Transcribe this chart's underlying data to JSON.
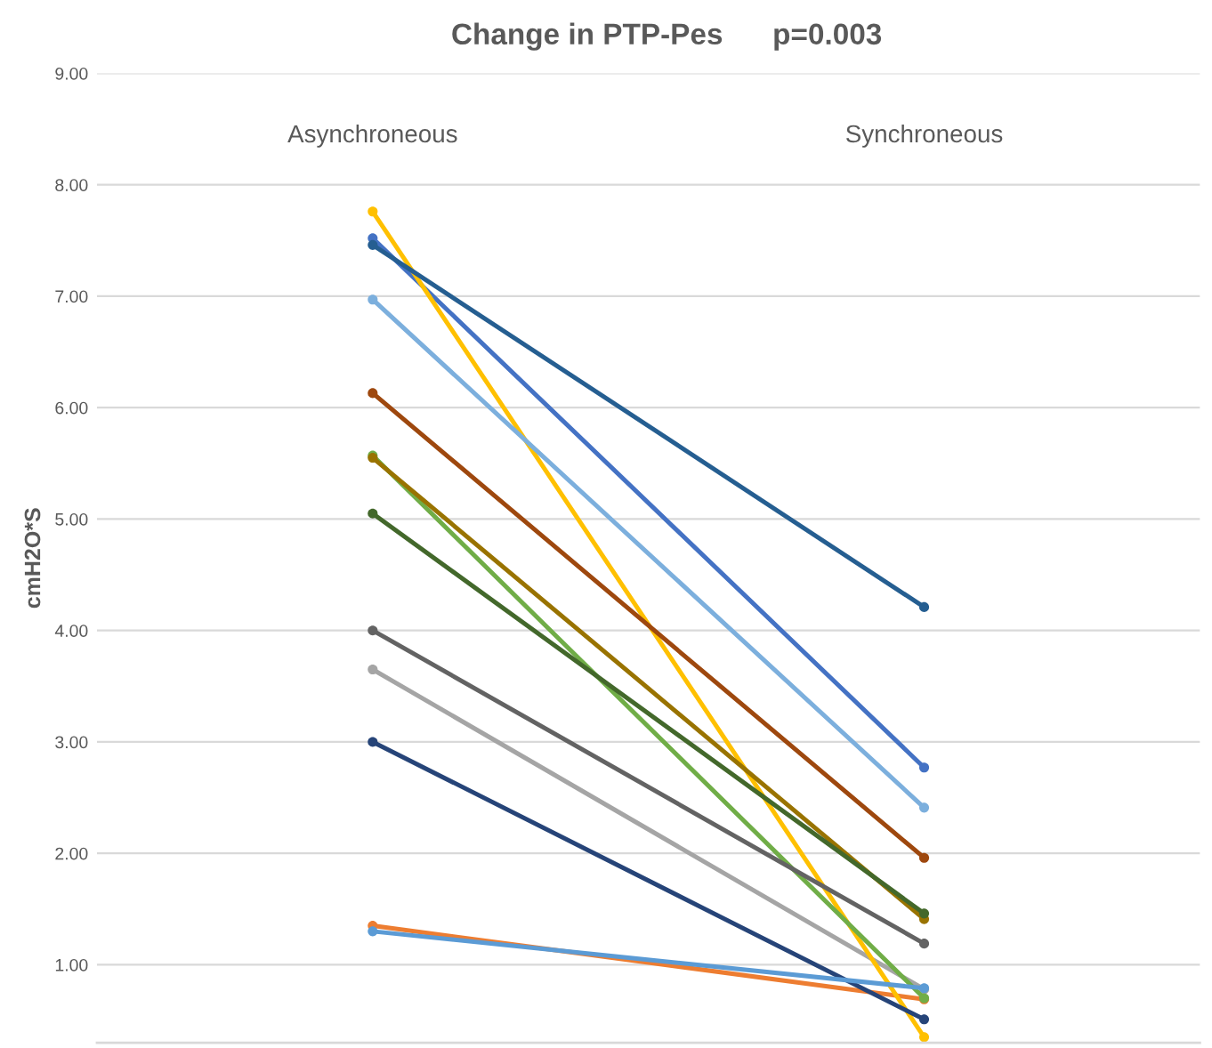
{
  "chart_data": {
    "type": "line",
    "title": "Change in PTP-Pes      p=0.003",
    "ylabel": "cmH2O*S",
    "categories": [
      "Asynchroneous",
      "Synchroneous"
    ],
    "series": [
      {
        "color": "#4472c4",
        "values": [
          7.52,
          2.77
        ]
      },
      {
        "color": "#ed7d31",
        "values": [
          1.35,
          0.69
        ]
      },
      {
        "color": "#a5a5a5",
        "values": [
          3.65,
          0.78
        ]
      },
      {
        "color": "#ffc000",
        "values": [
          7.76,
          0.35
        ]
      },
      {
        "color": "#7cafdd",
        "values": [
          6.97,
          2.41
        ]
      },
      {
        "color": "#70ad47",
        "values": [
          5.57,
          0.7
        ]
      },
      {
        "color": "#264478",
        "values": [
          3.0,
          0.51
        ]
      },
      {
        "color": "#9e480e",
        "values": [
          6.13,
          1.96
        ]
      },
      {
        "color": "#636363",
        "values": [
          4.0,
          1.19
        ]
      },
      {
        "color": "#997300",
        "values": [
          5.55,
          1.41
        ]
      },
      {
        "color": "#255e91",
        "values": [
          7.46,
          4.21
        ]
      },
      {
        "color": "#43682b",
        "values": [
          5.05,
          1.46
        ]
      },
      {
        "color": "#5b9bd5",
        "values": [
          1.3,
          0.79
        ]
      }
    ],
    "ylim": [
      0.3,
      9.0
    ],
    "yticks": [
      {
        "value": 1,
        "label": "1.00"
      },
      {
        "value": 2,
        "label": "2.00"
      },
      {
        "value": 3,
        "label": "3.00"
      },
      {
        "value": 4,
        "label": "4.00"
      },
      {
        "value": 5,
        "label": "5.00"
      },
      {
        "value": 6,
        "label": "6.00"
      },
      {
        "value": 7,
        "label": "7.00"
      },
      {
        "value": 8,
        "label": "8.00"
      },
      {
        "value": 9,
        "label": "9.00"
      }
    ],
    "grid": "y",
    "marker": "circle",
    "line_style": "solid",
    "legend": false
  }
}
